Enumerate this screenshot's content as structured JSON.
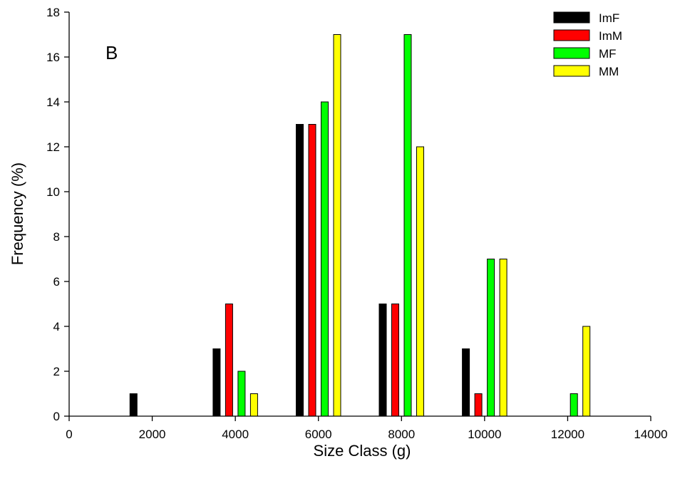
{
  "chart_data": {
    "type": "bar",
    "panel_label": "B",
    "xlabel": "Size Class (g)",
    "ylabel": "Frequency (%)",
    "xlim": [
      0,
      14000
    ],
    "ylim": [
      0,
      18
    ],
    "xticks": [
      0,
      2000,
      4000,
      6000,
      8000,
      10000,
      12000,
      14000
    ],
    "yticks": [
      0,
      2,
      4,
      6,
      8,
      10,
      12,
      14,
      16,
      18
    ],
    "grid": false,
    "legend_position": "top-right",
    "categories": [
      2000,
      4000,
      6000,
      8000,
      10000,
      12000
    ],
    "series": [
      {
        "name": "ImF",
        "color": "#000000",
        "values": [
          1,
          3,
          13,
          5,
          3,
          0
        ]
      },
      {
        "name": "ImM",
        "color": "#ff0000",
        "values": [
          0,
          5,
          13,
          5,
          1,
          0
        ]
      },
      {
        "name": "MF",
        "color": "#00ff00",
        "values": [
          0,
          2,
          14,
          17,
          7,
          1
        ]
      },
      {
        "name": "MM",
        "color": "#ffff00",
        "values": [
          0,
          1,
          17,
          12,
          7,
          4
        ]
      }
    ]
  }
}
